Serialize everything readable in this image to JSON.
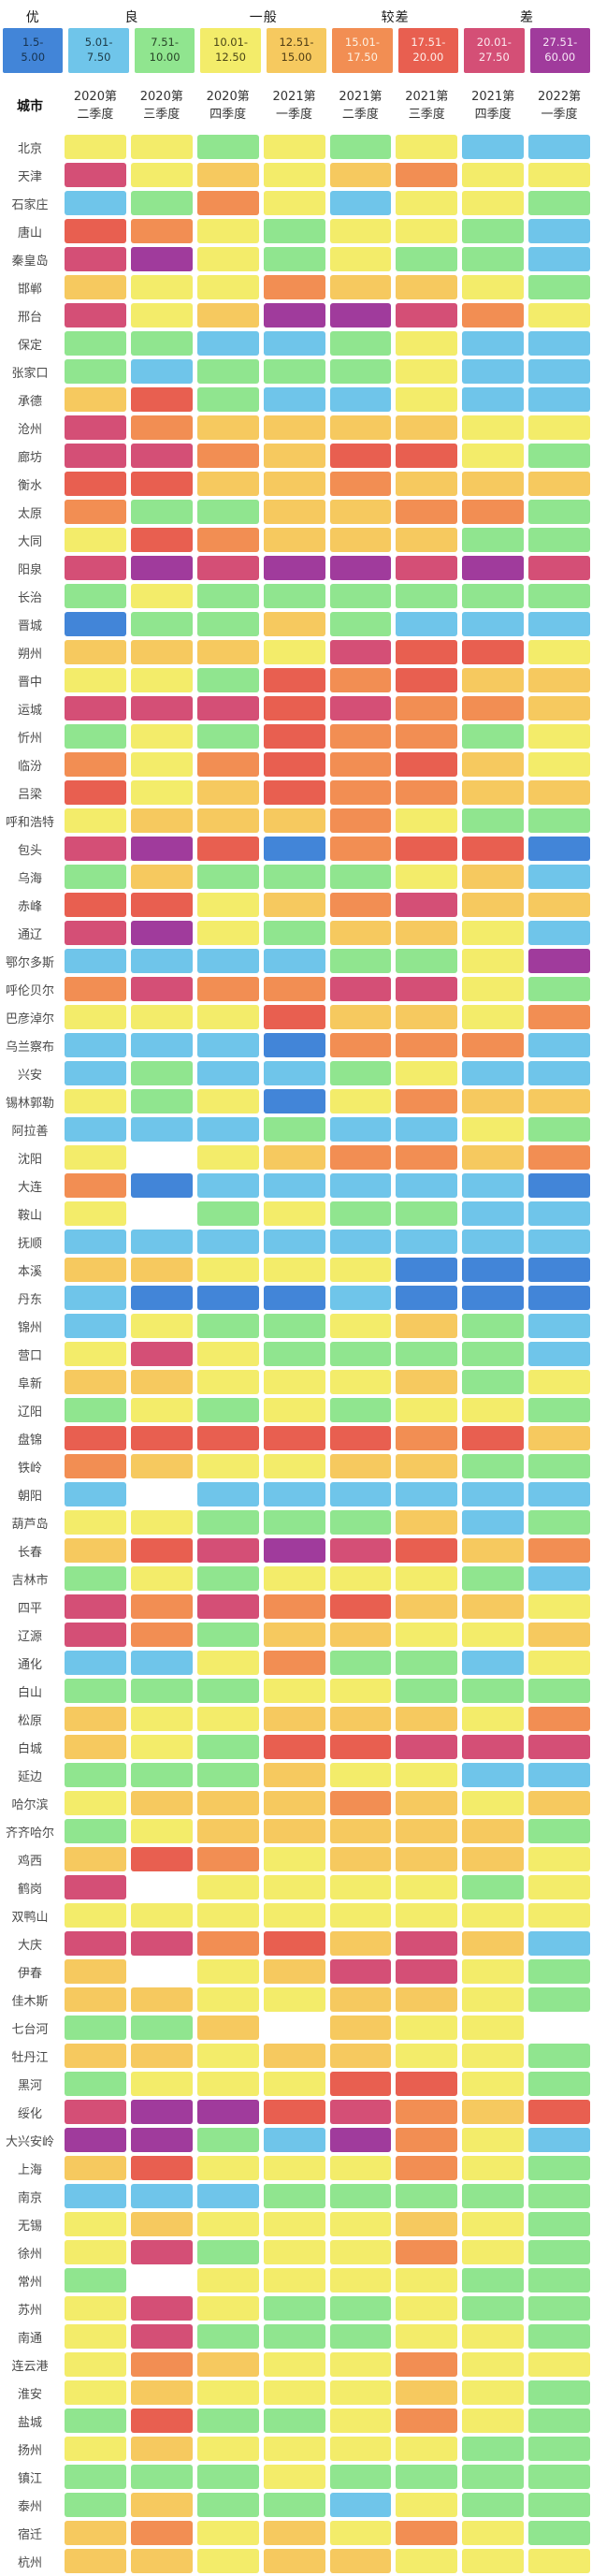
{
  "legend": {
    "categories": [
      {
        "label": "优",
        "span": 1
      },
      {
        "label": "良",
        "span": 2
      },
      {
        "label": "一般",
        "span": 2
      },
      {
        "label": "较差",
        "span": 2
      },
      {
        "label": "差",
        "span": 2
      }
    ],
    "swatches": [
      {
        "line1": "1.5-",
        "line2": "5.00",
        "color": "#4285d8",
        "text_color": "#16324e"
      },
      {
        "line1": "5.01-",
        "line2": "7.50",
        "color": "#6fc5ea",
        "text_color": "#1d3a47"
      },
      {
        "line1": "7.51-",
        "line2": "10.00",
        "color": "#90e58f",
        "text_color": "#274427"
      },
      {
        "line1": "10.01-",
        "line2": "12.50",
        "color": "#f3ec6a",
        "text_color": "#4a4517"
      },
      {
        "line1": "12.51-",
        "line2": "15.00",
        "color": "#f6c95f",
        "text_color": "#4e3c14"
      },
      {
        "line1": "15.01-",
        "line2": "17.50",
        "color": "#f28e53",
        "text_color": "#fdf3e4"
      },
      {
        "line1": "17.51-",
        "line2": "20.00",
        "color": "#e85f50",
        "text_color": "#fdeeea"
      },
      {
        "line1": "20.01-",
        "line2": "27.50",
        "color": "#d44f76",
        "text_color": "#fce9ef"
      },
      {
        "line1": "27.51-",
        "line2": "60.00",
        "color": "#a03b9c",
        "text_color": "#f7e7f6"
      }
    ]
  },
  "table": {
    "corner_label": "城市"
  },
  "chart_data": {
    "type": "heatmap",
    "title": "",
    "legend_position": "top",
    "x": [
      "2020第二季度",
      "2020第三季度",
      "2020第四季度",
      "2021第一季度",
      "2021第二季度",
      "2021第三季度",
      "2021第四季度",
      "2022第一季度"
    ],
    "y": [
      "北京",
      "天津",
      "石家庄",
      "唐山",
      "秦皇岛",
      "邯郸",
      "邢台",
      "保定",
      "张家口",
      "承德",
      "沧州",
      "廊坊",
      "衡水",
      "太原",
      "大同",
      "阳泉",
      "长治",
      "晋城",
      "朔州",
      "晋中",
      "运城",
      "忻州",
      "临汾",
      "吕梁",
      "呼和浩特",
      "包头",
      "乌海",
      "赤峰",
      "通辽",
      "鄂尔多斯",
      "呼伦贝尔",
      "巴彦淖尔",
      "乌兰察布",
      "兴安",
      "锡林郭勒",
      "阿拉善",
      "沈阳",
      "大连",
      "鞍山",
      "抚顺",
      "本溪",
      "丹东",
      "锦州",
      "营口",
      "阜新",
      "辽阳",
      "盘锦",
      "铁岭",
      "朝阳",
      "葫芦岛",
      "长春",
      "吉林市",
      "四平",
      "辽源",
      "通化",
      "白山",
      "松原",
      "白城",
      "延边",
      "哈尔滨",
      "齐齐哈尔",
      "鸡西",
      "鹤岗",
      "双鸭山",
      "大庆",
      "伊春",
      "佳木斯",
      "七台河",
      "牡丹江",
      "黑河",
      "绥化",
      "大兴安岭",
      "上海",
      "南京",
      "无锡",
      "徐州",
      "常州",
      "苏州",
      "南通",
      "连云港",
      "淮安",
      "盐城",
      "扬州",
      "镇江",
      "泰州",
      "宿迁",
      "杭州"
    ],
    "buckets": [
      {
        "grade": "优",
        "range": "1.5-5.00",
        "color": "#4285d8"
      },
      {
        "grade": "良",
        "range": "5.01-7.50",
        "color": "#6fc5ea"
      },
      {
        "grade": "良",
        "range": "7.51-10.00",
        "color": "#90e58f"
      },
      {
        "grade": "一般",
        "range": "10.01-12.50",
        "color": "#f3ec6a"
      },
      {
        "grade": "一般",
        "range": "12.51-15.00",
        "color": "#f6c95f"
      },
      {
        "grade": "较差",
        "range": "15.01-17.50",
        "color": "#f28e53"
      },
      {
        "grade": "较差",
        "range": "17.51-20.00",
        "color": "#e85f50"
      },
      {
        "grade": "差",
        "range": "20.01-27.50",
        "color": "#d44f76"
      },
      {
        "grade": "差",
        "range": "27.51-60.00",
        "color": "#a03b9c"
      }
    ],
    "no_data_value": -1,
    "no_data_color": "#ffffff",
    "values": [
      [
        3,
        3,
        2,
        3,
        2,
        3,
        1,
        1
      ],
      [
        7,
        3,
        4,
        3,
        4,
        5,
        3,
        3
      ],
      [
        1,
        2,
        5,
        3,
        1,
        3,
        3,
        2
      ],
      [
        6,
        5,
        3,
        2,
        3,
        3,
        2,
        1
      ],
      [
        7,
        8,
        3,
        2,
        3,
        2,
        2,
        1
      ],
      [
        4,
        3,
        3,
        5,
        4,
        4,
        3,
        2
      ],
      [
        7,
        3,
        4,
        8,
        8,
        7,
        5,
        3
      ],
      [
        2,
        2,
        1,
        1,
        2,
        3,
        1,
        1
      ],
      [
        2,
        1,
        2,
        2,
        2,
        3,
        1,
        1
      ],
      [
        4,
        6,
        2,
        1,
        1,
        3,
        1,
        1
      ],
      [
        7,
        5,
        4,
        4,
        4,
        4,
        3,
        3
      ],
      [
        7,
        7,
        5,
        4,
        6,
        6,
        3,
        2
      ],
      [
        6,
        6,
        4,
        4,
        5,
        4,
        4,
        4
      ],
      [
        5,
        2,
        2,
        4,
        4,
        5,
        5,
        2
      ],
      [
        3,
        6,
        5,
        4,
        4,
        4,
        2,
        2
      ],
      [
        7,
        8,
        7,
        8,
        8,
        7,
        8,
        7
      ],
      [
        2,
        3,
        2,
        2,
        2,
        2,
        2,
        2
      ],
      [
        0,
        2,
        2,
        4,
        2,
        1,
        1,
        1
      ],
      [
        4,
        4,
        4,
        3,
        7,
        6,
        6,
        3
      ],
      [
        3,
        3,
        2,
        6,
        5,
        6,
        4,
        4
      ],
      [
        7,
        7,
        7,
        6,
        7,
        5,
        5,
        4
      ],
      [
        2,
        3,
        2,
        6,
        5,
        5,
        2,
        3
      ],
      [
        5,
        3,
        5,
        6,
        5,
        6,
        4,
        3
      ],
      [
        6,
        3,
        4,
        6,
        5,
        5,
        4,
        4
      ],
      [
        3,
        4,
        4,
        4,
        5,
        3,
        2,
        2
      ],
      [
        7,
        8,
        6,
        0,
        5,
        6,
        6,
        0
      ],
      [
        2,
        4,
        2,
        2,
        2,
        3,
        4,
        1
      ],
      [
        6,
        6,
        3,
        4,
        5,
        7,
        4,
        4
      ],
      [
        7,
        8,
        3,
        2,
        4,
        4,
        3,
        1
      ],
      [
        1,
        1,
        1,
        1,
        2,
        2,
        3,
        8
      ],
      [
        5,
        7,
        5,
        5,
        7,
        7,
        3,
        2
      ],
      [
        3,
        3,
        3,
        6,
        4,
        4,
        3,
        5
      ],
      [
        1,
        1,
        1,
        0,
        5,
        5,
        5,
        1
      ],
      [
        1,
        2,
        1,
        1,
        2,
        3,
        1,
        1
      ],
      [
        3,
        2,
        3,
        0,
        3,
        5,
        4,
        4
      ],
      [
        1,
        1,
        1,
        2,
        1,
        1,
        3,
        2
      ],
      [
        3,
        -1,
        3,
        4,
        5,
        5,
        4,
        5
      ],
      [
        5,
        0,
        1,
        1,
        1,
        1,
        1,
        0
      ],
      [
        3,
        -1,
        2,
        3,
        2,
        2,
        1,
        1
      ],
      [
        1,
        1,
        1,
        1,
        1,
        1,
        1,
        1
      ],
      [
        4,
        4,
        3,
        3,
        3,
        0,
        0,
        0
      ],
      [
        1,
        0,
        0,
        0,
        1,
        0,
        0,
        0
      ],
      [
        1,
        3,
        2,
        2,
        3,
        4,
        2,
        1
      ],
      [
        3,
        7,
        3,
        2,
        2,
        2,
        2,
        1
      ],
      [
        4,
        4,
        3,
        3,
        3,
        4,
        2,
        3
      ],
      [
        2,
        3,
        2,
        3,
        2,
        3,
        3,
        2
      ],
      [
        6,
        6,
        6,
        6,
        6,
        5,
        6,
        4
      ],
      [
        5,
        4,
        3,
        3,
        4,
        4,
        2,
        2
      ],
      [
        1,
        -1,
        1,
        1,
        1,
        1,
        1,
        1
      ],
      [
        3,
        3,
        2,
        2,
        2,
        4,
        1,
        2
      ],
      [
        4,
        6,
        7,
        8,
        7,
        6,
        4,
        5
      ],
      [
        2,
        3,
        2,
        3,
        3,
        3,
        2,
        1
      ],
      [
        7,
        5,
        7,
        5,
        6,
        4,
        4,
        3
      ],
      [
        7,
        5,
        2,
        4,
        4,
        3,
        3,
        4
      ],
      [
        1,
        1,
        3,
        5,
        2,
        2,
        1,
        3
      ],
      [
        2,
        2,
        2,
        3,
        3,
        2,
        2,
        2
      ],
      [
        4,
        3,
        3,
        4,
        4,
        4,
        3,
        5
      ],
      [
        4,
        3,
        2,
        6,
        6,
        7,
        7,
        7
      ],
      [
        2,
        2,
        2,
        4,
        3,
        3,
        1,
        1
      ],
      [
        3,
        4,
        4,
        4,
        5,
        4,
        3,
        4
      ],
      [
        2,
        3,
        4,
        4,
        4,
        4,
        4,
        2
      ],
      [
        4,
        6,
        5,
        3,
        4,
        4,
        4,
        3
      ],
      [
        7,
        -1,
        3,
        3,
        3,
        3,
        2,
        3
      ],
      [
        3,
        3,
        3,
        3,
        3,
        3,
        3,
        3
      ],
      [
        7,
        7,
        5,
        6,
        4,
        7,
        4,
        1
      ],
      [
        4,
        -1,
        3,
        4,
        7,
        7,
        3,
        2
      ],
      [
        4,
        4,
        3,
        3,
        4,
        4,
        3,
        2
      ],
      [
        2,
        2,
        4,
        -1,
        4,
        3,
        3,
        -1
      ],
      [
        4,
        4,
        3,
        4,
        4,
        3,
        3,
        2
      ],
      [
        2,
        3,
        3,
        3,
        6,
        6,
        3,
        2
      ],
      [
        7,
        8,
        8,
        6,
        7,
        5,
        4,
        6
      ],
      [
        8,
        8,
        2,
        1,
        8,
        5,
        3,
        1
      ],
      [
        4,
        6,
        3,
        3,
        3,
        5,
        3,
        2
      ],
      [
        1,
        1,
        1,
        2,
        2,
        2,
        2,
        2
      ],
      [
        3,
        4,
        3,
        3,
        3,
        4,
        3,
        2
      ],
      [
        3,
        7,
        2,
        3,
        3,
        5,
        3,
        2
      ],
      [
        2,
        -1,
        3,
        3,
        3,
        3,
        2,
        2
      ],
      [
        3,
        7,
        3,
        2,
        2,
        3,
        2,
        2
      ],
      [
        3,
        7,
        2,
        2,
        2,
        3,
        3,
        2
      ],
      [
        3,
        5,
        4,
        3,
        3,
        5,
        3,
        3
      ],
      [
        3,
        4,
        3,
        3,
        3,
        4,
        3,
        2
      ],
      [
        2,
        6,
        2,
        2,
        3,
        5,
        3,
        2
      ],
      [
        3,
        4,
        3,
        3,
        3,
        3,
        2,
        2
      ],
      [
        2,
        2,
        2,
        3,
        2,
        2,
        2,
        2
      ],
      [
        2,
        4,
        2,
        2,
        1,
        3,
        2,
        2
      ],
      [
        4,
        5,
        3,
        4,
        3,
        5,
        3,
        2
      ],
      [
        4,
        4,
        3,
        4,
        4,
        3,
        3,
        3
      ]
    ]
  }
}
